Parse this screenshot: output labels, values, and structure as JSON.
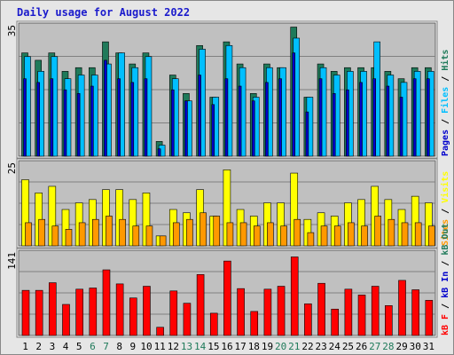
{
  "title": "Daily usage for August 2022",
  "colors": {
    "hits": "#1f7a5a",
    "files": "#00bfff",
    "pages": "#0000cc",
    "visits": "#ffff00",
    "sites": "#ff9900",
    "kbf": "#ff0000",
    "kbin": "#0000cc",
    "kbout": "#1f7a5a",
    "weekend_label": "#1f7a5a",
    "weekday_label": "#000000",
    "panel_bg": "#c0c0c0"
  },
  "chart_data": [
    {
      "type": "bar",
      "panel": "top",
      "ymax_label": "35",
      "ymax": 35,
      "categories": [
        "1",
        "2",
        "3",
        "4",
        "5",
        "6",
        "7",
        "8",
        "9",
        "10",
        "11",
        "12",
        "13",
        "14",
        "15",
        "16",
        "17",
        "18",
        "19",
        "20",
        "21",
        "22",
        "23",
        "24",
        "25",
        "26",
        "27",
        "28",
        "29",
        "30",
        "31"
      ],
      "weekend": [
        6,
        7,
        13,
        14,
        20,
        21,
        27,
        28
      ],
      "right_label": [
        "Pages",
        " / ",
        "Files",
        " / ",
        "Hits"
      ],
      "series": [
        {
          "name": "Hits",
          "values": [
            28,
            26,
            28,
            23,
            24,
            24,
            31,
            28,
            25,
            28,
            4,
            22,
            17,
            30,
            16,
            31,
            25,
            17,
            25,
            24,
            35,
            16,
            25,
            23,
            24,
            24,
            24,
            23,
            21,
            24,
            24
          ]
        },
        {
          "name": "Files",
          "values": [
            27,
            23,
            27,
            21,
            22,
            22,
            25,
            28,
            24,
            27,
            3,
            21,
            15,
            29,
            16,
            30,
            24,
            16,
            24,
            24,
            32,
            16,
            24,
            22,
            23,
            23,
            31,
            22,
            20,
            23,
            23
          ]
        },
        {
          "name": "Pages",
          "values": [
            21,
            20,
            21,
            18,
            17,
            19,
            26,
            21,
            20,
            21,
            2,
            18,
            15,
            22,
            14,
            21,
            19,
            15,
            20,
            21,
            28,
            12,
            21,
            17,
            18,
            20,
            21,
            19,
            16,
            21,
            21
          ]
        }
      ]
    },
    {
      "type": "bar",
      "panel": "middle",
      "ymax_label": "25",
      "ymax": 25,
      "right_label": [
        "Sites",
        " / ",
        "Visits"
      ],
      "series": [
        {
          "name": "Visits",
          "values": [
            20,
            16,
            18,
            11,
            13,
            14,
            17,
            17,
            14,
            16,
            3,
            11,
            10,
            17,
            9,
            23,
            11,
            9,
            13,
            13,
            22,
            8,
            10,
            9,
            13,
            14,
            18,
            14,
            11,
            15,
            13
          ]
        },
        {
          "name": "Sites",
          "values": [
            7,
            8,
            6,
            5,
            7,
            8,
            9,
            8,
            6,
            6,
            3,
            7,
            8,
            10,
            9,
            7,
            7,
            6,
            7,
            6,
            8,
            4,
            6,
            6,
            7,
            6,
            9,
            8,
            7,
            7,
            6
          ]
        }
      ]
    },
    {
      "type": "bar",
      "panel": "bottom",
      "ymax_label": "141",
      "ymax": 141,
      "right_label": [
        "kB F",
        " / ",
        "kB In",
        " / ",
        "kB Out"
      ],
      "series": [
        {
          "name": "kB F",
          "values": [
            77,
            77,
            90,
            53,
            79,
            81,
            112,
            88,
            64,
            84,
            14,
            76,
            55,
            104,
            38,
            127,
            80,
            41,
            79,
            84,
            134,
            54,
            89,
            45,
            79,
            69,
            84,
            51,
            94,
            78,
            60
          ]
        }
      ]
    }
  ]
}
